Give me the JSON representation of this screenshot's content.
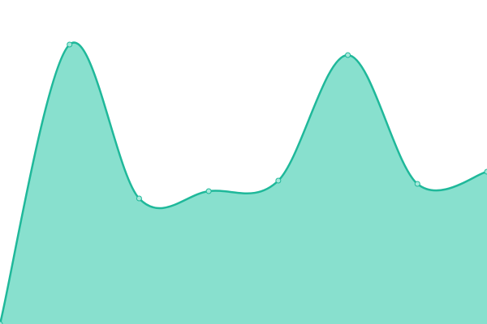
{
  "chart_data": {
    "type": "area",
    "categories": [
      null,
      null,
      null,
      null,
      null,
      null,
      null,
      null
    ],
    "values": [
      0,
      345,
      155,
      164,
      177,
      332,
      173,
      188
    ],
    "ylim": [
      0,
      400
    ],
    "color": "#1fb89a",
    "fill": "#88e0ce",
    "marker_fill": "#a6e8da",
    "curve": "smooth",
    "markers": true
  }
}
